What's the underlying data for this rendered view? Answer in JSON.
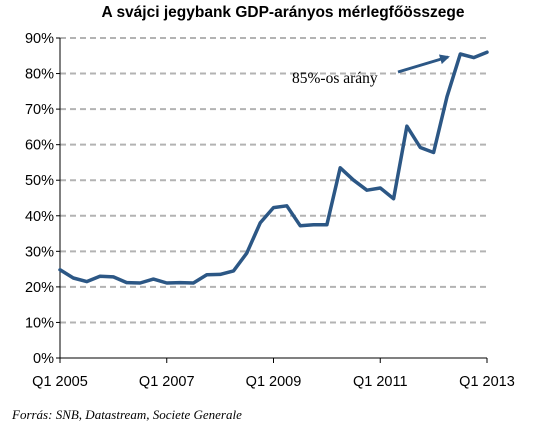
{
  "chart_data": {
    "type": "line",
    "title": "A svájci jegybank GDP-arányos mérlegfőösszege",
    "source": "Forrás: SNB, Datastream, Societe Generale",
    "annotation": "85%-os arány",
    "ylim": [
      0,
      90
    ],
    "yticks": [
      0,
      10,
      20,
      30,
      40,
      50,
      60,
      70,
      80,
      90
    ],
    "ytick_labels": [
      "0%",
      "10%",
      "20%",
      "30%",
      "40%",
      "50%",
      "60%",
      "70%",
      "80%",
      "90%"
    ],
    "xlim": [
      0,
      32
    ],
    "xticks": [
      0,
      8,
      16,
      24,
      32
    ],
    "xtick_labels": [
      "Q1 2005",
      "Q1 2007",
      "Q1 2009",
      "Q1 2011",
      "Q1 2013"
    ],
    "grid": true,
    "line_color": "#2c5785",
    "series": [
      {
        "x": [
          0,
          1,
          2,
          3,
          4,
          5,
          6,
          7,
          8,
          9,
          10,
          11,
          12,
          13,
          14,
          15,
          16,
          17,
          18,
          19,
          20,
          21,
          22,
          23,
          24,
          25,
          26,
          27,
          28,
          29,
          30,
          31,
          32
        ],
        "values": [
          24.8,
          22.5,
          21.5,
          23.0,
          22.8,
          21.2,
          21.1,
          22.2,
          21.1,
          21.2,
          21.1,
          23.4,
          23.5,
          24.5,
          29.5,
          38.0,
          42.3,
          42.8,
          37.2,
          37.5,
          37.5,
          53.5,
          50.0,
          47.2,
          47.8,
          44.8,
          65.2,
          59.2,
          57.8,
          73.5,
          85.5,
          84.5,
          86.0
        ]
      }
    ]
  }
}
